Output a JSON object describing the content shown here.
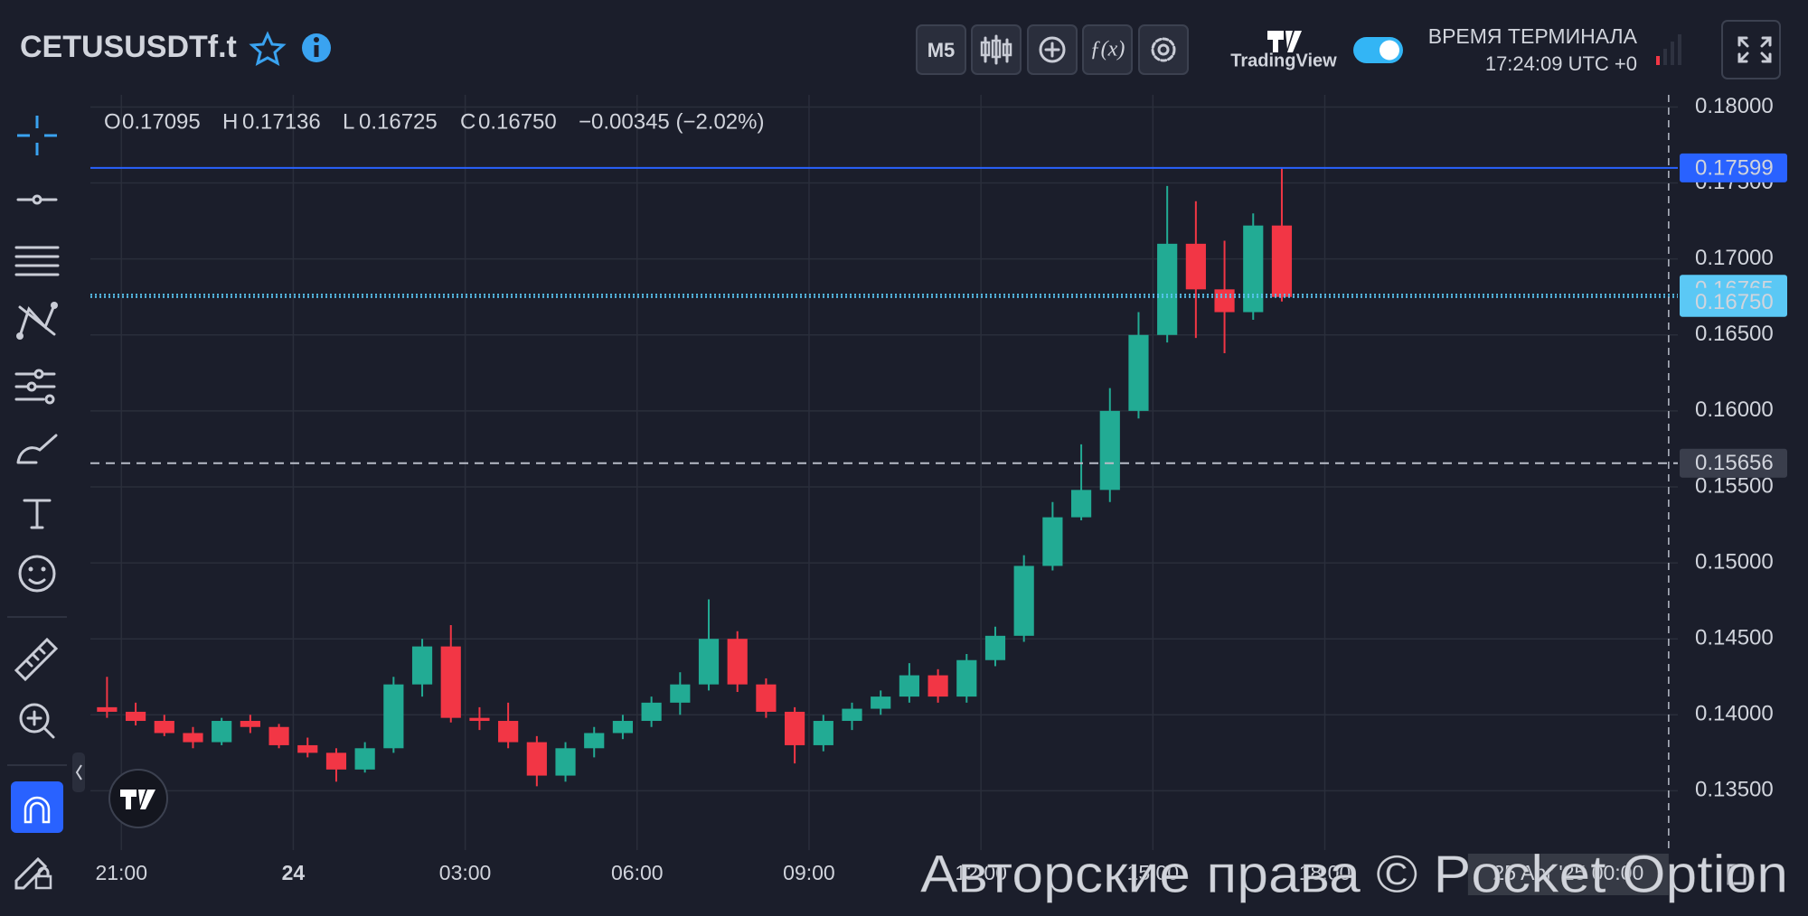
{
  "header": {
    "symbol": "CETUSUSDTf.t",
    "timeframe": "M5",
    "brand": "TradingView",
    "terminal_time_label": "ВРЕМЯ ТЕРМИНАЛА",
    "terminal_time": "17:24:09 UTC +0"
  },
  "legend": {
    "items": [
      {
        "key": "O",
        "value": "0.17095"
      },
      {
        "key": "H",
        "value": "0.17136"
      },
      {
        "key": "L",
        "value": "0.16725"
      },
      {
        "key": "C",
        "value": "0.16750"
      }
    ],
    "change": "−0.00345 (−2.02%)"
  },
  "watermark": "Авторские права © Pocket Option",
  "chart_data": {
    "type": "candlestick",
    "x": [
      -0.25,
      0.25,
      0.75,
      1.25,
      1.75,
      2.25,
      2.75,
      3.25,
      3.75,
      4.25,
      4.75,
      5.25,
      5.75,
      6.25,
      6.75,
      7.25,
      7.75,
      8.25,
      8.75,
      9.25,
      9.75,
      10.25,
      10.75,
      11.25,
      11.75,
      12.25,
      12.75,
      13.25,
      13.75,
      14.25,
      14.75,
      15.25,
      15.75,
      16.25,
      16.75,
      17.25,
      17.75,
      18.25,
      18.75,
      19.25,
      19.75,
      20.25
    ],
    "open": [
      0.1405,
      0.1402,
      0.1396,
      0.1388,
      0.1382,
      0.1396,
      0.1392,
      0.138,
      0.1375,
      0.1364,
      0.1378,
      0.142,
      0.1445,
      0.1398,
      0.1396,
      0.1382,
      0.136,
      0.1378,
      0.1388,
      0.1396,
      0.1408,
      0.142,
      0.145,
      0.142,
      0.1402,
      0.138,
      0.1396,
      0.1404,
      0.1412,
      0.1426,
      0.1412,
      0.1436,
      0.1452,
      0.1498,
      0.153,
      0.1548,
      0.16,
      0.165,
      0.171,
      0.168,
      0.1665,
      0.1722
    ],
    "high": [
      0.1425,
      0.1408,
      0.14,
      0.1392,
      0.1398,
      0.14,
      0.1394,
      0.1385,
      0.1378,
      0.1382,
      0.1425,
      0.145,
      0.1459,
      0.1405,
      0.1408,
      0.1386,
      0.1382,
      0.1392,
      0.14,
      0.1412,
      0.1428,
      0.1476,
      0.1455,
      0.1424,
      0.1405,
      0.14,
      0.1408,
      0.1416,
      0.1434,
      0.143,
      0.144,
      0.1458,
      0.1505,
      0.154,
      0.1578,
      0.1615,
      0.1665,
      0.1748,
      0.1738,
      0.1712,
      0.173,
      0.176
    ],
    "low": [
      0.1398,
      0.1393,
      0.1386,
      0.1378,
      0.138,
      0.1388,
      0.1378,
      0.1372,
      0.1356,
      0.1362,
      0.1375,
      0.1412,
      0.1395,
      0.139,
      0.1378,
      0.1353,
      0.1356,
      0.1372,
      0.1384,
      0.1392,
      0.14,
      0.1416,
      0.1415,
      0.1398,
      0.1368,
      0.1376,
      0.139,
      0.14,
      0.1408,
      0.1408,
      0.1408,
      0.1432,
      0.1448,
      0.1495,
      0.1528,
      0.154,
      0.1595,
      0.1645,
      0.1648,
      0.1638,
      0.166,
      0.1672
    ],
    "close": [
      0.1402,
      0.1396,
      0.1388,
      0.1382,
      0.1396,
      0.1392,
      0.138,
      0.1375,
      0.1364,
      0.1378,
      0.142,
      0.1445,
      0.1398,
      0.1396,
      0.1382,
      0.136,
      0.1378,
      0.1388,
      0.1396,
      0.1408,
      0.142,
      0.145,
      0.142,
      0.1402,
      0.138,
      0.1396,
      0.1404,
      0.1412,
      0.1426,
      0.1412,
      0.1436,
      0.1452,
      0.1498,
      0.153,
      0.1548,
      0.16,
      0.165,
      0.171,
      0.168,
      0.1665,
      0.1722,
      0.1675
    ],
    "up_color": "#22ab94",
    "down_color": "#f23645",
    "grid": true,
    "xlim": [
      -0.54,
      27.16
    ],
    "ylim": [
      0.1311,
      0.1808
    ],
    "xticks": [
      {
        "value": 0,
        "label": "21:00"
      },
      {
        "value": 3,
        "label": "24"
      },
      {
        "value": 6,
        "label": "03:00"
      },
      {
        "value": 9,
        "label": "06:00"
      },
      {
        "value": 12,
        "label": "09:00"
      },
      {
        "value": 15,
        "label": "12:00"
      },
      {
        "value": 18,
        "label": "15:00"
      },
      {
        "value": 21,
        "label": "18:00"
      }
    ],
    "yticks": [
      {
        "value": 0.135,
        "label": "0.13500"
      },
      {
        "value": 0.14,
        "label": "0.14000"
      },
      {
        "value": 0.145,
        "label": "0.14500"
      },
      {
        "value": 0.15,
        "label": "0.15000"
      },
      {
        "value": 0.155,
        "label": "0.15500"
      },
      {
        "value": 0.16,
        "label": "0.16000"
      },
      {
        "value": 0.165,
        "label": "0.16500"
      },
      {
        "value": 0.17,
        "label": "0.17000"
      },
      {
        "value": 0.175,
        "label": "0.17500"
      },
      {
        "value": 0.18,
        "label": "0.18000"
      }
    ],
    "price_lines": [
      {
        "value": 0.17599,
        "color": "#2962ff",
        "style": "solid"
      },
      {
        "value": 0.16765,
        "color": "#5bc8f5",
        "style": "dotted"
      },
      {
        "value": 0.1675,
        "label": "0.16750",
        "color": "#5bc8f5",
        "style": "dotted"
      },
      {
        "value": 0.15656,
        "color": "#3a3e4c",
        "style": "dashed"
      }
    ],
    "crosshair": {
      "x": 27,
      "label": "25 Apr '25 00:00"
    }
  }
}
